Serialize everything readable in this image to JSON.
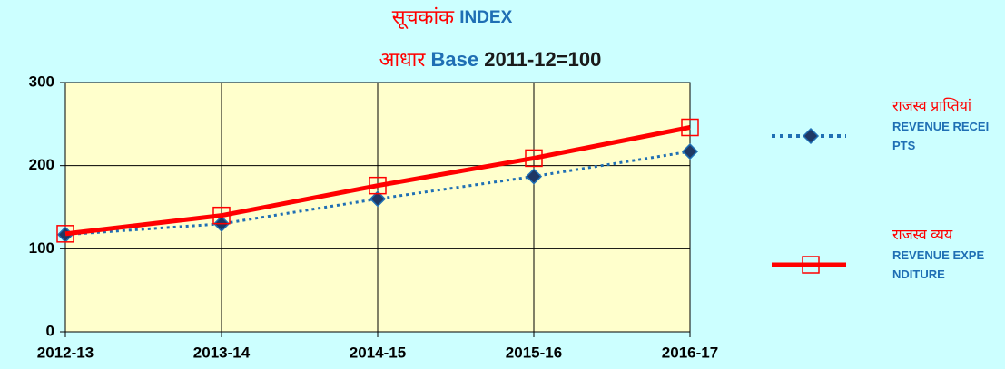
{
  "chart_data": {
    "type": "line",
    "title": {
      "hindi": "सूचकांक",
      "english": "INDEX"
    },
    "subtitle": {
      "hindi": "आधार",
      "english": "Base",
      "base": "2011-12=100"
    },
    "categories": [
      "2012-13",
      "2013-14",
      "2014-15",
      "2015-16",
      "2016-17"
    ],
    "series": [
      {
        "name": {
          "hindi": "राजस्व प्राप्तियां",
          "english": "REVENUE RECEIPTS"
        },
        "color": "#1f6fb4",
        "marker": "diamond",
        "values": [
          117,
          130,
          160,
          187,
          217
        ]
      },
      {
        "name": {
          "hindi": "राजस्व व्यय",
          "english": "REVENUE EXPENDITURE"
        },
        "color": "#ff0000",
        "marker": "square",
        "values": [
          118,
          140,
          176,
          209,
          246
        ]
      }
    ],
    "ylim": [
      0,
      300
    ],
    "yticks": [
      0,
      100,
      200,
      300
    ],
    "grid": true,
    "legend": "right"
  }
}
